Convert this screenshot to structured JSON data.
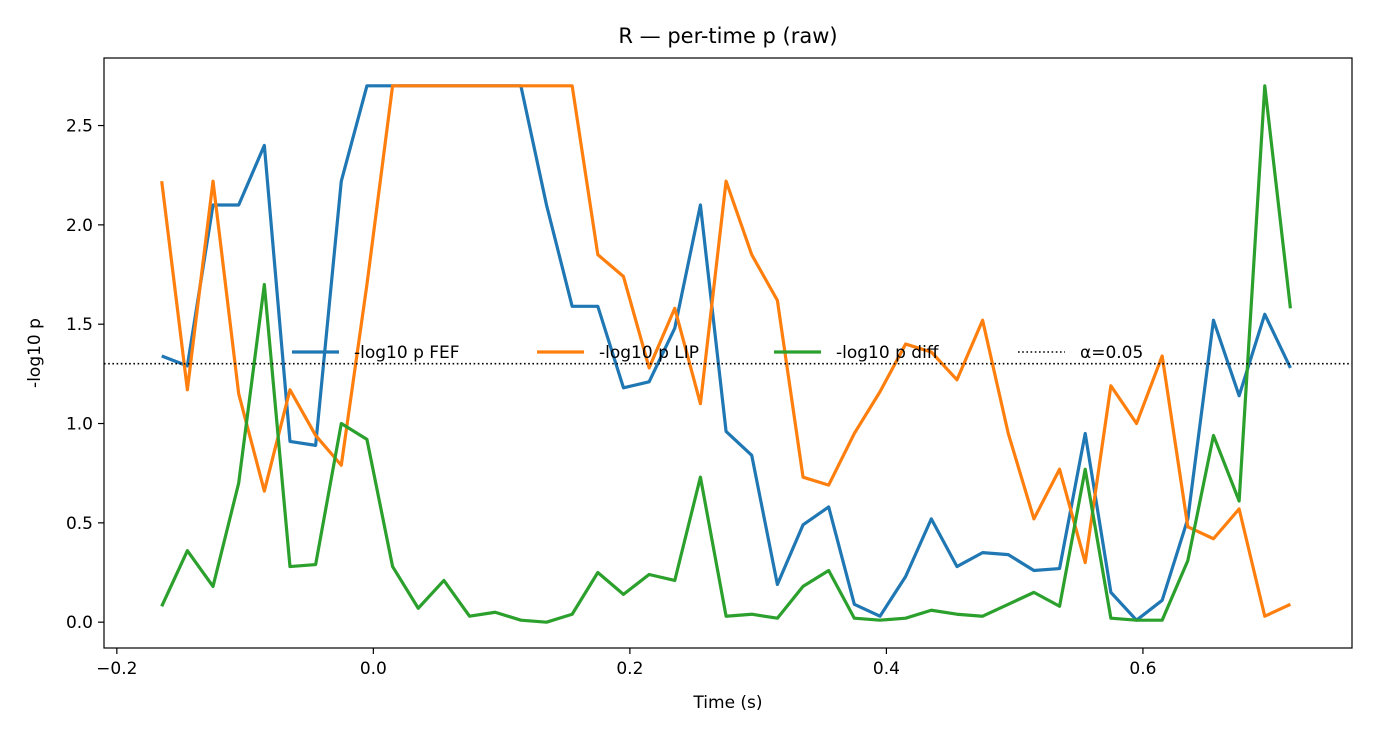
{
  "chart_data": {
    "type": "line",
    "title": "R — per-time p (raw)",
    "xlabel": "Time (s)",
    "ylabel": "-log10 p",
    "xlim": [
      -0.21,
      0.763
    ],
    "ylim": [
      -0.13,
      2.84
    ],
    "xticks": [
      -0.2,
      0.0,
      0.2,
      0.4,
      0.6
    ],
    "xtick_labels": [
      "−0.2",
      "0.0",
      "0.2",
      "0.4",
      "0.6"
    ],
    "yticks": [
      0.0,
      0.5,
      1.0,
      1.5,
      2.0,
      2.5
    ],
    "ytick_labels": [
      "0.0",
      "0.5",
      "1.0",
      "1.5",
      "2.0",
      "2.5"
    ],
    "grid": false,
    "legend_position": "center, single row",
    "x": [
      -0.165,
      -0.145,
      -0.125,
      -0.105,
      -0.085,
      -0.065,
      -0.045,
      -0.025,
      -0.005,
      0.015,
      0.035,
      0.055,
      0.075,
      0.095,
      0.115,
      0.135,
      0.155,
      0.175,
      0.195,
      0.215,
      0.235,
      0.255,
      0.275,
      0.295,
      0.315,
      0.335,
      0.355,
      0.375,
      0.395,
      0.415,
      0.435,
      0.455,
      0.475,
      0.495,
      0.515,
      0.535,
      0.555,
      0.575,
      0.595,
      0.615,
      0.635,
      0.655,
      0.675,
      0.695,
      0.715
    ],
    "series": [
      {
        "name": "-log10 p FEF",
        "color": "#1f77b4",
        "values": [
          1.34,
          1.29,
          2.1,
          2.1,
          2.4,
          0.91,
          0.89,
          2.22,
          2.7,
          2.7,
          2.7,
          2.7,
          2.7,
          2.7,
          2.7,
          2.1,
          1.59,
          1.59,
          1.18,
          1.21,
          1.48,
          2.1,
          0.96,
          0.84,
          0.19,
          0.49,
          0.58,
          0.09,
          0.03,
          0.23,
          0.52,
          0.28,
          0.35,
          0.34,
          0.26,
          0.27,
          0.95,
          0.15,
          0.01,
          0.11,
          0.52,
          1.52,
          1.14,
          1.55,
          1.28
        ]
      },
      {
        "name": "-log10 p LIP",
        "color": "#ff7f0e",
        "values": [
          2.22,
          1.17,
          2.22,
          1.15,
          0.66,
          1.17,
          0.94,
          0.79,
          1.7,
          2.7,
          2.7,
          2.7,
          2.7,
          2.7,
          2.7,
          2.7,
          2.7,
          1.85,
          1.74,
          1.28,
          1.58,
          1.1,
          2.22,
          1.85,
          1.62,
          0.73,
          0.69,
          0.95,
          1.16,
          1.4,
          1.36,
          1.22,
          1.52,
          0.95,
          0.52,
          0.77,
          0.3,
          1.19,
          1.0,
          1.34,
          0.48,
          0.42,
          0.57,
          0.03,
          0.09
        ]
      },
      {
        "name": "-log10 p diff",
        "color": "#2ca02c",
        "values": [
          0.08,
          0.36,
          0.18,
          0.7,
          1.7,
          0.28,
          0.29,
          1.0,
          0.92,
          0.28,
          0.07,
          0.21,
          0.03,
          0.05,
          0.01,
          0.0,
          0.04,
          0.25,
          0.14,
          0.24,
          0.21,
          0.73,
          0.03,
          0.04,
          0.02,
          0.18,
          0.26,
          0.02,
          0.01,
          0.02,
          0.06,
          0.04,
          0.03,
          0.09,
          0.15,
          0.08,
          0.77,
          0.02,
          0.01,
          0.01,
          0.31,
          0.94,
          0.61,
          2.7,
          1.58
        ]
      }
    ],
    "hline": {
      "name": "α=0.05",
      "value": 1.301,
      "color": "#000000",
      "style": "dotted"
    }
  }
}
